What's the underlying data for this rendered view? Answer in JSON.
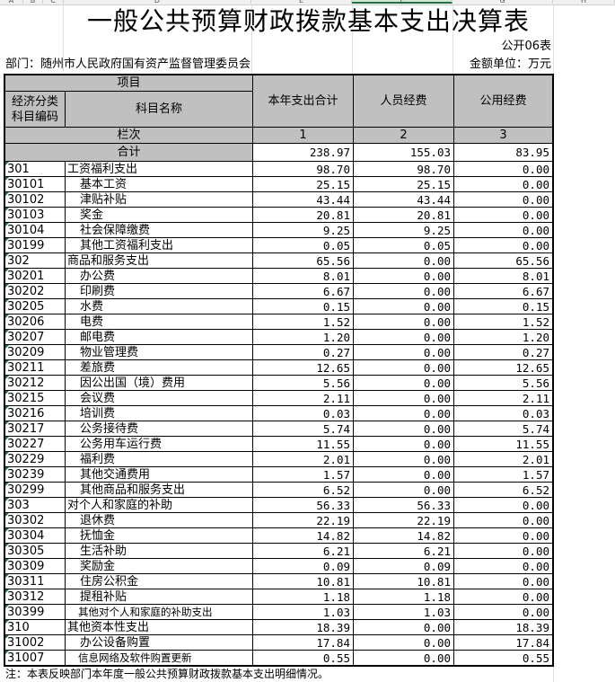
{
  "sheet": {
    "columns": [
      "A",
      "B",
      "C",
      "D",
      "E",
      "F",
      "G",
      "H"
    ],
    "selected_column": "F"
  },
  "title": "一般公共预算财政拨款基本支出决算表",
  "table_no": "公开06表",
  "department": "部门：随州市人民政府国有资产监督管理委员会",
  "unit": "金额单位：万元",
  "header": {
    "item": "项目",
    "code": "经济分类科目编码",
    "name": "科目名称",
    "col1": "本年支出合计",
    "col2": "人员经费",
    "col3": "公用经费",
    "seq_label": "栏次",
    "seq1": "1",
    "seq2": "2",
    "seq3": "3",
    "total_label": "合计",
    "total1": "238.97",
    "total2": "155.03",
    "total3": "83.95"
  },
  "rows": [
    {
      "code": "301",
      "name": "工资福利支出",
      "level": 1,
      "v1": "98.70",
      "v2": "98.70",
      "v3": "0.00"
    },
    {
      "code": "30101",
      "name": "基本工资",
      "level": 2,
      "v1": "25.15",
      "v2": "25.15",
      "v3": "0.00"
    },
    {
      "code": "30102",
      "name": "津贴补贴",
      "level": 2,
      "v1": "43.44",
      "v2": "43.44",
      "v3": "0.00"
    },
    {
      "code": "30103",
      "name": "奖金",
      "level": 2,
      "v1": "20.81",
      "v2": "20.81",
      "v3": "0.00"
    },
    {
      "code": "30104",
      "name": "社会保障缴费",
      "level": 2,
      "v1": "9.25",
      "v2": "9.25",
      "v3": "0.00"
    },
    {
      "code": "30199",
      "name": "其他工资福利支出",
      "level": 2,
      "v1": "0.05",
      "v2": "0.05",
      "v3": "0.00"
    },
    {
      "code": "302",
      "name": "商品和服务支出",
      "level": 1,
      "v1": "65.56",
      "v2": "0.00",
      "v3": "65.56"
    },
    {
      "code": "30201",
      "name": "办公费",
      "level": 2,
      "v1": "8.01",
      "v2": "0.00",
      "v3": "8.01"
    },
    {
      "code": "30202",
      "name": "印刷费",
      "level": 2,
      "v1": "6.67",
      "v2": "0.00",
      "v3": "6.67"
    },
    {
      "code": "30205",
      "name": "水费",
      "level": 2,
      "v1": "0.15",
      "v2": "0.00",
      "v3": "0.15"
    },
    {
      "code": "30206",
      "name": "电费",
      "level": 2,
      "v1": "1.52",
      "v2": "0.00",
      "v3": "1.52"
    },
    {
      "code": "30207",
      "name": "邮电费",
      "level": 2,
      "v1": "1.20",
      "v2": "0.00",
      "v3": "1.20"
    },
    {
      "code": "30209",
      "name": "物业管理费",
      "level": 2,
      "v1": "0.27",
      "v2": "0.00",
      "v3": "0.27"
    },
    {
      "code": "30211",
      "name": "差旅费",
      "level": 2,
      "v1": "12.65",
      "v2": "0.00",
      "v3": "12.65"
    },
    {
      "code": "30212",
      "name": "因公出国（境）费用",
      "level": 2,
      "v1": "5.56",
      "v2": "0.00",
      "v3": "5.56"
    },
    {
      "code": "30215",
      "name": "会议费",
      "level": 2,
      "v1": "2.11",
      "v2": "0.00",
      "v3": "2.11"
    },
    {
      "code": "30216",
      "name": "培训费",
      "level": 2,
      "v1": "0.03",
      "v2": "0.00",
      "v3": "0.03"
    },
    {
      "code": "30217",
      "name": "公务接待费",
      "level": 2,
      "v1": "5.74",
      "v2": "0.00",
      "v3": "5.74"
    },
    {
      "code": "30227",
      "name": "公务用车运行费",
      "level": 2,
      "v1": "11.55",
      "v2": "0.00",
      "v3": "11.55"
    },
    {
      "code": "30229",
      "name": "福利费",
      "level": 2,
      "v1": "2.01",
      "v2": "0.00",
      "v3": "2.01"
    },
    {
      "code": "30239",
      "name": "其他交通费用",
      "level": 2,
      "v1": "1.57",
      "v2": "0.00",
      "v3": "1.57"
    },
    {
      "code": "30299",
      "name": "其他商品和服务支出",
      "level": 2,
      "v1": "6.52",
      "v2": "0.00",
      "v3": "6.52"
    },
    {
      "code": "303",
      "name": "对个人和家庭的补助",
      "level": 1,
      "v1": "56.33",
      "v2": "56.33",
      "v3": "0.00"
    },
    {
      "code": "30302",
      "name": "退休费",
      "level": 2,
      "v1": "22.19",
      "v2": "22.19",
      "v3": "0.00"
    },
    {
      "code": "30304",
      "name": "抚恤金",
      "level": 2,
      "v1": "14.82",
      "v2": "14.82",
      "v3": "0.00"
    },
    {
      "code": "30305",
      "name": "生活补助",
      "level": 2,
      "v1": "6.21",
      "v2": "6.21",
      "v3": "0.00"
    },
    {
      "code": "30309",
      "name": "奖励金",
      "level": 2,
      "v1": "0.09",
      "v2": "0.09",
      "v3": "0.00"
    },
    {
      "code": "30311",
      "name": "住房公积金",
      "level": 2,
      "v1": "10.81",
      "v2": "10.81",
      "v3": "0.00"
    },
    {
      "code": "30312",
      "name": "提租补贴",
      "level": 2,
      "v1": "1.18",
      "v2": "1.18",
      "v3": "0.00"
    },
    {
      "code": "30399",
      "name": "其他对个人和家庭的补助支出",
      "level": 2,
      "v1": "1.03",
      "v2": "1.03",
      "v3": "0.00"
    },
    {
      "code": "310",
      "name": "其他资本性支出",
      "level": 1,
      "v1": "18.39",
      "v2": "0.00",
      "v3": "18.39"
    },
    {
      "code": "31002",
      "name": "办公设备购置",
      "level": 2,
      "v1": "17.84",
      "v2": "0.00",
      "v3": "17.84"
    },
    {
      "code": "31007",
      "name": "信息网络及软件购置更新",
      "level": 2,
      "v1": "0.55",
      "v2": "0.00",
      "v3": "0.55"
    }
  ],
  "note": "注：本表反映部门本年度一般公共预算财政拨款基本支出明细情况。"
}
